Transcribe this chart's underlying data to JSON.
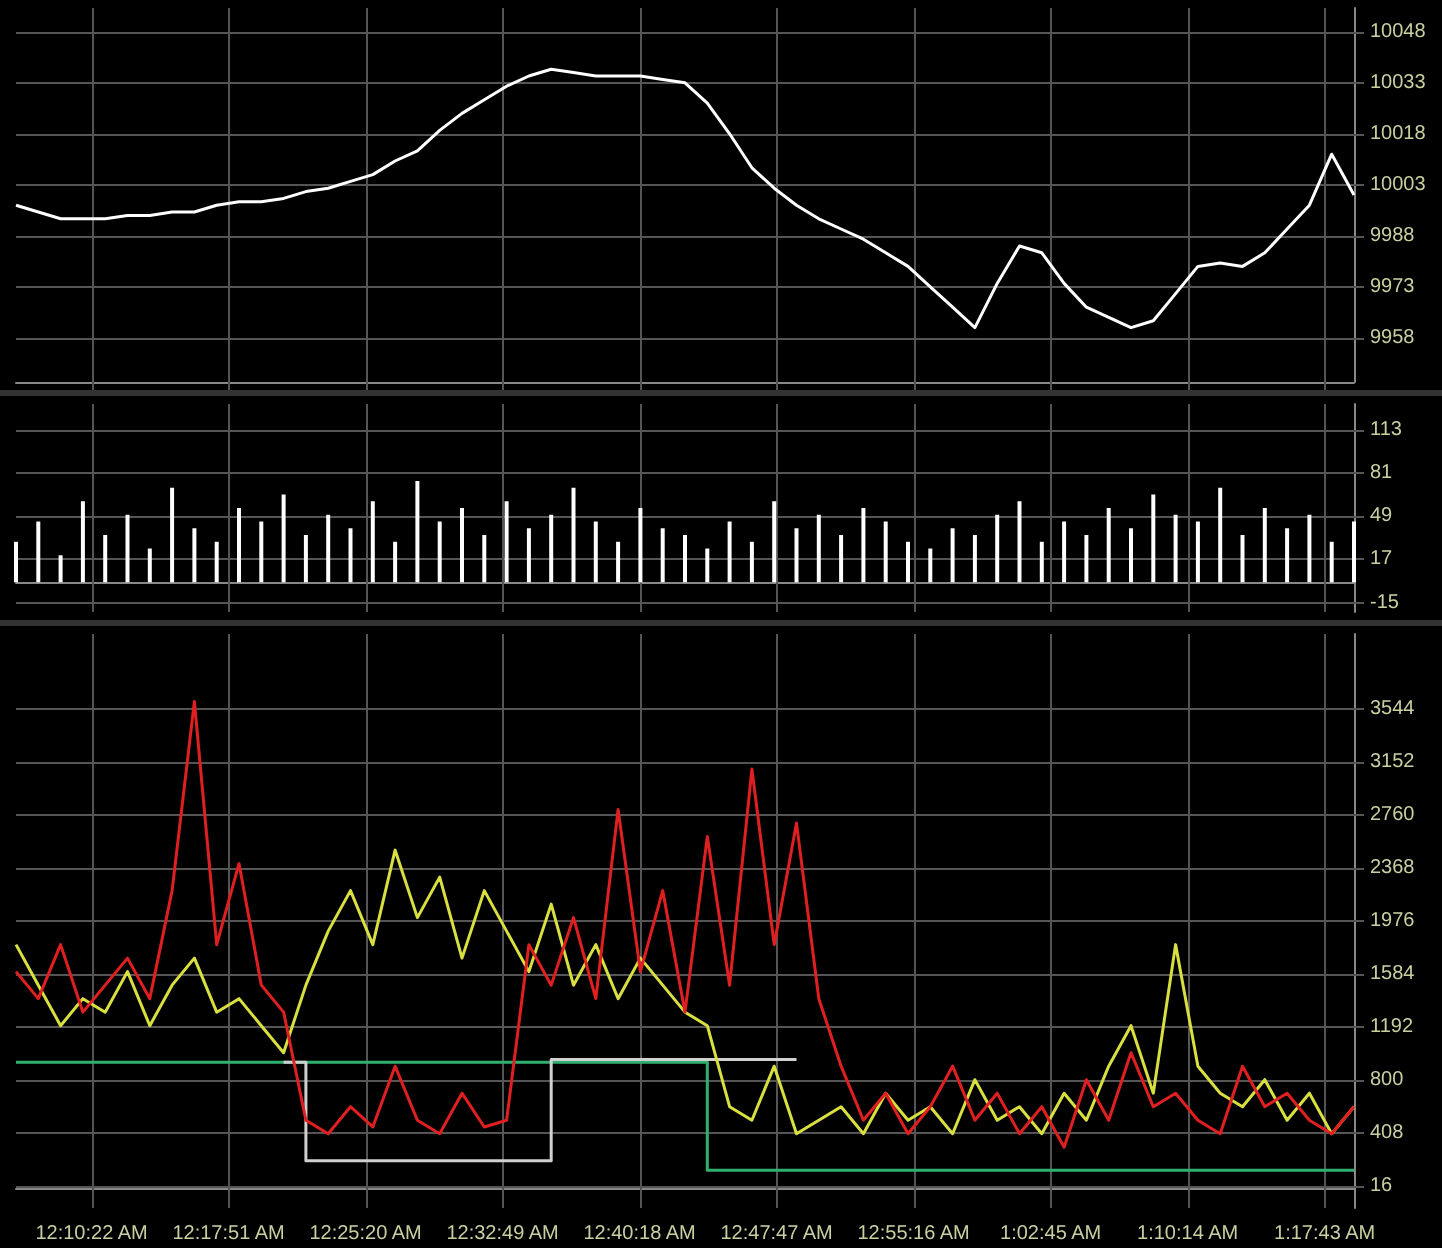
{
  "chart_data": [
    {
      "type": "line",
      "x": [
        0.104,
        0.1243,
        0.1446,
        0.1649,
        0.1852,
        0.2055,
        0.2258,
        0.2461,
        0.2664,
        0.2867,
        0.307,
        0.3273,
        0.3476,
        0.3679,
        0.3882,
        0.4085,
        0.4288,
        0.4491,
        0.4694,
        0.4897,
        0.51,
        0.5303,
        0.5506,
        0.5709,
        0.5912,
        0.6115,
        0.6318,
        0.6521,
        0.6724,
        0.6927,
        0.713,
        0.7333,
        0.7536,
        0.7739,
        0.7942,
        0.8145,
        0.8348,
        0.8551,
        0.8754,
        0.8957,
        0.916,
        0.9363,
        0.9566,
        0.9769,
        0.9972,
        1.0175,
        1.0378,
        1.0581,
        1.0784,
        1.0987,
        1.119,
        1.1393,
        1.1596,
        1.1799,
        1.2002,
        1.2205,
        1.2408,
        1.2611,
        1.2814,
        1.3017,
        1.322
      ],
      "series": [
        {
          "color": "#ffffff",
          "values": [
            9997,
            9995,
            9993,
            9993,
            9993,
            9994,
            9994,
            9995,
            9995,
            9997,
            9998,
            9998,
            9999,
            10001,
            10002,
            10004,
            10006,
            10010,
            10013,
            10019,
            10024,
            10028,
            10032,
            10035,
            10037,
            10036,
            10035,
            10035,
            10035,
            10034,
            10033,
            10027,
            10018,
            10008,
            10002,
            9997,
            9993,
            9990,
            9987,
            9983,
            9979,
            9973,
            9967,
            9961,
            9974,
            9985,
            9983,
            9974,
            9967,
            9964,
            9961,
            9963,
            9971,
            9979,
            9980,
            9979,
            9983,
            9990,
            9997,
            10012,
            10000
          ]
        }
      ],
      "xlim": [
        0.104,
        1.322
      ],
      "xticks": [
        0.17278,
        0.2975,
        0.42222,
        0.54694,
        0.67167,
        0.79639,
        0.92111,
        1.04583,
        1.17056,
        1.29528
      ],
      "ylim": [
        9945,
        10055
      ],
      "yticks": [
        9958,
        9973,
        9988,
        10003,
        10018,
        10033,
        10048
      ],
      "grid": true,
      "tick_labels": "y",
      "marker": "none"
    },
    {
      "type": "bar",
      "x": [
        0.104,
        0.1243,
        0.1446,
        0.1649,
        0.1852,
        0.2055,
        0.2258,
        0.2461,
        0.2664,
        0.2867,
        0.307,
        0.3273,
        0.3476,
        0.3679,
        0.3882,
        0.4085,
        0.4288,
        0.4491,
        0.4694,
        0.4897,
        0.51,
        0.5303,
        0.5506,
        0.5709,
        0.5912,
        0.6115,
        0.6318,
        0.6521,
        0.6724,
        0.6927,
        0.713,
        0.7333,
        0.7536,
        0.7739,
        0.7942,
        0.8145,
        0.8348,
        0.8551,
        0.8754,
        0.8957,
        0.916,
        0.9363,
        0.9566,
        0.9769,
        0.9972,
        1.0175,
        1.0378,
        1.0581,
        1.0784,
        1.0987,
        1.119,
        1.1393,
        1.1596,
        1.1799,
        1.2002,
        1.2205,
        1.2408,
        1.2611,
        1.2814,
        1.3017,
        1.322
      ],
      "series": [
        {
          "color": "#ffffff",
          "values": [
            30,
            45,
            20,
            60,
            35,
            50,
            25,
            70,
            40,
            30,
            55,
            45,
            65,
            35,
            50,
            40,
            60,
            30,
            75,
            45,
            55,
            35,
            60,
            40,
            50,
            70,
            45,
            30,
            55,
            40,
            35,
            25,
            45,
            30,
            60,
            40,
            50,
            35,
            55,
            45,
            30,
            25,
            40,
            35,
            50,
            60,
            30,
            45,
            35,
            55,
            40,
            65,
            50,
            45,
            70,
            35,
            55,
            40,
            50,
            30,
            45
          ]
        }
      ],
      "xlim": [
        0.104,
        1.322
      ],
      "xticks": [
        0.17278,
        0.2975,
        0.42222,
        0.54694,
        0.67167,
        0.79639,
        0.92111,
        1.04583,
        1.17056,
        1.29528
      ],
      "ylim": [
        -22,
        132
      ],
      "yticks": [
        -15,
        17,
        49,
        81,
        113
      ],
      "grid": true,
      "tick_labels": "y"
    },
    {
      "type": "line",
      "x": [
        0.104,
        0.1243,
        0.1446,
        0.1649,
        0.1852,
        0.2055,
        0.2258,
        0.2461,
        0.2664,
        0.2867,
        0.307,
        0.3273,
        0.3476,
        0.3679,
        0.3882,
        0.4085,
        0.4288,
        0.4491,
        0.4694,
        0.4897,
        0.51,
        0.5303,
        0.5506,
        0.5709,
        0.5912,
        0.6115,
        0.6318,
        0.6521,
        0.6724,
        0.6927,
        0.713,
        0.7333,
        0.7536,
        0.7739,
        0.7942,
        0.8145,
        0.8348,
        0.8551,
        0.8754,
        0.8957,
        0.916,
        0.9363,
        0.9566,
        0.9769,
        0.9972,
        1.0175,
        1.0378,
        1.0581,
        1.0784,
        1.0987,
        1.119,
        1.1393,
        1.1596,
        1.1799,
        1.2002,
        1.2205,
        1.2408,
        1.2611,
        1.2814,
        1.3017,
        1.322
      ],
      "series": [
        {
          "color": "#30b070",
          "type": "step",
          "values": [
            930,
            930,
            930,
            930,
            930,
            930,
            930,
            930,
            930,
            930,
            930,
            930,
            930,
            930,
            930,
            930,
            930,
            930,
            930,
            930,
            930,
            930,
            930,
            930,
            930,
            930,
            930,
            930,
            930,
            930,
            930,
            130,
            130,
            130,
            130,
            130,
            130,
            130,
            130,
            130,
            130,
            130,
            130,
            130,
            130,
            130,
            130,
            130,
            130,
            130,
            130,
            130,
            130,
            130,
            130,
            130,
            130,
            130,
            130,
            130,
            130
          ]
        },
        {
          "color": "#d0d0d0",
          "type": "line",
          "x": [
            0.3476,
            0.3679,
            0.3679,
            0.5912,
            0.5912,
            0.8145
          ],
          "values": [
            930,
            930,
            200,
            200,
            950,
            950
          ]
        },
        {
          "color": "#d8e040",
          "values": [
            1800,
            1500,
            1200,
            1400,
            1300,
            1600,
            1200,
            1500,
            1700,
            1300,
            1400,
            1200,
            1000,
            1500,
            1900,
            2200,
            1800,
            2500,
            2000,
            2300,
            1700,
            2200,
            1900,
            1600,
            2100,
            1500,
            1800,
            1400,
            1700,
            1500,
            1300,
            1200,
            600,
            500,
            900,
            400,
            500,
            600,
            400,
            700,
            500,
            600,
            400,
            800,
            500,
            600,
            400,
            700,
            500,
            900,
            1200,
            700,
            1800,
            900,
            700,
            600,
            800,
            500,
            700,
            400,
            600
          ]
        },
        {
          "color": "#e02020",
          "values": [
            1600,
            1400,
            1800,
            1300,
            1500,
            1700,
            1400,
            2200,
            3600,
            1800,
            2400,
            1500,
            1300,
            500,
            400,
            600,
            450,
            900,
            500,
            400,
            700,
            450,
            500,
            1800,
            1500,
            2000,
            1400,
            2800,
            1600,
            2200,
            1300,
            2600,
            1500,
            3100,
            1800,
            2700,
            1400,
            900,
            500,
            700,
            400,
            600,
            900,
            500,
            700,
            400,
            600,
            300,
            800,
            500,
            1000,
            600,
            700,
            500,
            400,
            900,
            600,
            700,
            500,
            400,
            600
          ]
        }
      ],
      "xlim": [
        0.104,
        1.322
      ],
      "xticks": [
        {
          "value": 0.17278,
          "label": "12:10:22 AM"
        },
        {
          "value": 0.2975,
          "label": "12:17:51 AM"
        },
        {
          "value": 0.42222,
          "label": "12:25:20 AM"
        },
        {
          "value": 0.54694,
          "label": "12:32:49 AM"
        },
        {
          "value": 0.67167,
          "label": "12:40:18 AM"
        },
        {
          "value": 0.79639,
          "label": "12:47:47 AM"
        },
        {
          "value": 0.92111,
          "label": "12:55:16 AM"
        },
        {
          "value": 1.04583,
          "label": "1:02:45 AM"
        },
        {
          "value": 1.17056,
          "label": "1:10:14 AM"
        },
        {
          "value": 1.29528,
          "label": "1:17:43 AM"
        }
      ],
      "ylim": [
        -150,
        4100
      ],
      "yticks": [
        16,
        408,
        800,
        1192,
        1584,
        1976,
        2368,
        2760,
        3152,
        3544
      ],
      "grid": true,
      "marker": "none"
    }
  ]
}
